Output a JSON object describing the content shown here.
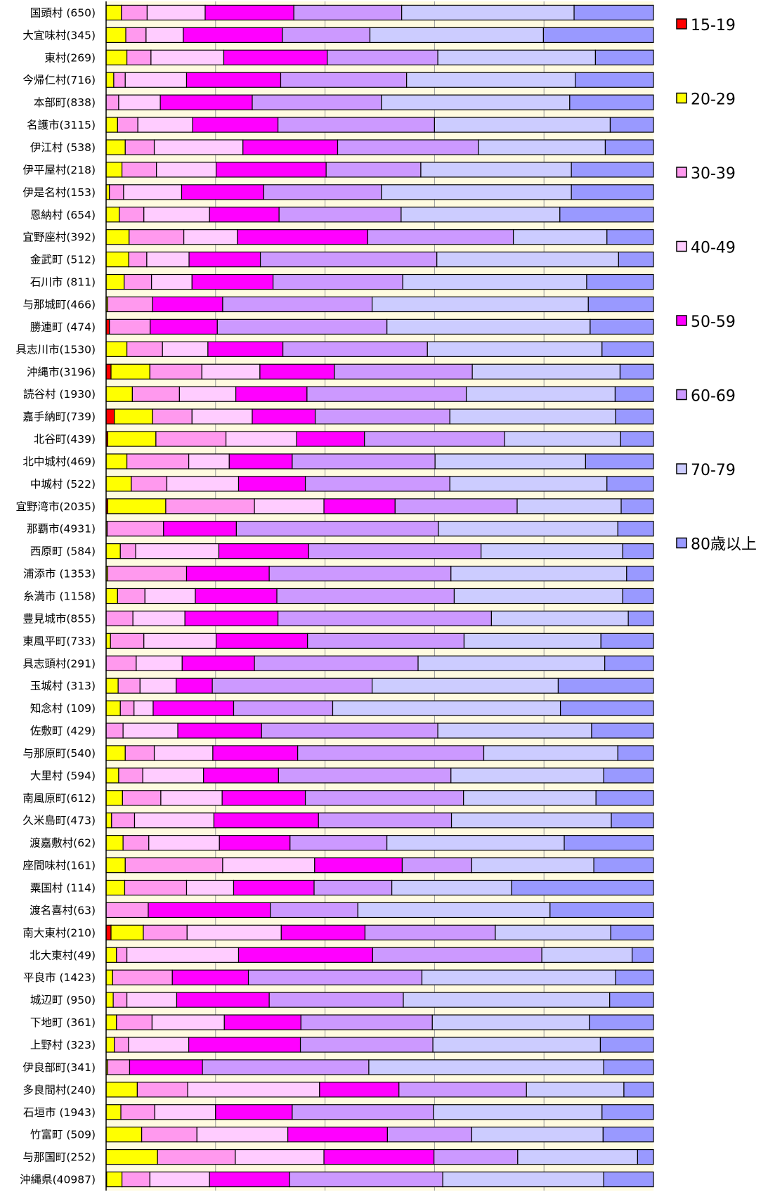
{
  "chart_data": {
    "type": "bar",
    "orientation": "horizontal",
    "stacked": true,
    "normalized": true,
    "grid": true,
    "legend_position": "right",
    "categories": [
      "国頭村 (650)",
      "大宜味村(345)",
      "東村(269)",
      "今帰仁村(716)",
      "本部町(838)",
      "名護市(3115)",
      "伊江村 (538)",
      "伊平屋村(218)",
      "伊是名村(153)",
      "恩納村 (654)",
      "宜野座村(392)",
      "金武町 (512)",
      "石川市 (811)",
      "与那城町(466)",
      "勝連町 (474)",
      "具志川市(1530)",
      "沖縄市(3196)",
      "読谷村 (1930)",
      "嘉手納町(739)",
      "北谷町(439)",
      "北中城村(469)",
      "中城村 (522)",
      "宜野湾市(2035)",
      "那覇市(4931)",
      "西原町 (584)",
      "浦添市 (1353)",
      "糸満市 (1158)",
      "豊見城市(855)",
      "東風平町(733)",
      "具志頭村(291)",
      "玉城村 (313)",
      "知念村 (109)",
      "佐敷町 (429)",
      "与那原町(540)",
      "大里村 (594)",
      "南風原町(612)",
      "久米島町(473)",
      "渡嘉敷村(62)",
      "座間味村(161)",
      "粟国村 (114)",
      "渡名喜村(63)",
      "南大東村(210)",
      "北大東村(49)",
      "平良市 (1423)",
      "城辺町 (950)",
      "下地町 (361)",
      "上野村 (323)",
      "伊良部町(341)",
      "多良間村(240)",
      "石垣市 (1943)",
      "竹富町 (509)",
      "与那国町(252)",
      "沖縄県(40987)"
    ],
    "series": [
      {
        "name": "15-19",
        "color": "#ff0000",
        "values": [
          0,
          0,
          0,
          0,
          0,
          0,
          0,
          0,
          0,
          0,
          0,
          0,
          0,
          0,
          0.6,
          0,
          0.9,
          0,
          1.5,
          0.3,
          0,
          0,
          0.3,
          0,
          0,
          0,
          0,
          0,
          0,
          0,
          0,
          0,
          0,
          0,
          0,
          0,
          0,
          0,
          0,
          0,
          0,
          0.9,
          0,
          0,
          0,
          0,
          0,
          0,
          0,
          0,
          0,
          0,
          0.1
        ]
      },
      {
        "name": "20-29",
        "color": "#ffff00",
        "values": [
          2.8,
          3.6,
          3.8,
          1.4,
          0,
          2.1,
          3.5,
          2.9,
          0.6,
          2.4,
          4.2,
          4.3,
          3.3,
          0.3,
          0,
          3.8,
          7.1,
          4.8,
          7.0,
          8.8,
          3.8,
          4.6,
          10.6,
          0.2,
          2.6,
          0.3,
          2.1,
          0,
          0.8,
          0,
          2.2,
          2.6,
          0,
          3.5,
          2.3,
          3.0,
          1.0,
          3.1,
          3.5,
          3.4,
          0,
          5.9,
          1.9,
          1.2,
          1.3,
          1.9,
          1.5,
          0.3,
          5.7,
          2.7,
          6.5,
          9.4,
          2.8
        ]
      },
      {
        "name": "30-39",
        "color": "#ff99ee",
        "values": [
          4.7,
          3.7,
          4.4,
          2.1,
          2.3,
          3.7,
          5.3,
          6.3,
          2.6,
          4.5,
          10.0,
          3.4,
          5.0,
          8.2,
          7.4,
          6.5,
          9.5,
          8.6,
          7.2,
          12.8,
          11.3,
          6.5,
          16.2,
          10.3,
          2.8,
          14.4,
          5.0,
          4.9,
          6.1,
          5.5,
          4.0,
          2.5,
          3.1,
          5.3,
          4.4,
          7.0,
          4.2,
          4.7,
          17.8,
          11.3,
          7.7,
          8.0,
          1.9,
          10.9,
          2.5,
          6.5,
          2.6,
          4.0,
          9.2,
          6.2,
          10.1,
          14.2,
          5.1
        ]
      },
      {
        "name": "40-49",
        "color": "#ffccff",
        "values": [
          10.6,
          6.8,
          13.3,
          11.2,
          7.6,
          10.0,
          16.2,
          10.9,
          10.6,
          12.0,
          9.8,
          8.0,
          7.4,
          0,
          0,
          8.3,
          10.6,
          10.3,
          11.0,
          12.9,
          7.4,
          13.1,
          12.7,
          0,
          15.2,
          0,
          9.2,
          9.5,
          13.2,
          8.4,
          6.6,
          3.5,
          10.0,
          10.7,
          11.1,
          11.2,
          14.5,
          12.9,
          16.8,
          8.6,
          0,
          17.2,
          20.4,
          0,
          9.1,
          13.2,
          11.0,
          0,
          24.1,
          11.1,
          16.6,
          16.2,
          10.9
        ]
      },
      {
        "name": "50-59",
        "color": "#ff00ff",
        "values": [
          16.2,
          18.1,
          18.9,
          17.2,
          16.8,
          15.6,
          17.3,
          20.1,
          15.0,
          12.7,
          23.8,
          13.5,
          14.8,
          12.8,
          12.2,
          13.7,
          13.6,
          13.0,
          11.5,
          12.4,
          11.5,
          12.2,
          13.0,
          13.3,
          16.4,
          15.1,
          14.9,
          17.0,
          16.7,
          13.2,
          6.6,
          14.7,
          15.3,
          15.5,
          13.7,
          15.2,
          19.1,
          12.9,
          16.0,
          14.7,
          22.3,
          15.3,
          24.5,
          13.9,
          16.9,
          14.0,
          20.4,
          13.3,
          14.5,
          14.0,
          18.2,
          20.1,
          14.6
        ]
      },
      {
        "name": "60-69",
        "color": "#cc99ff",
        "values": [
          19.7,
          16.0,
          20.2,
          23.0,
          23.6,
          28.6,
          25.7,
          17.3,
          21.5,
          22.3,
          26.6,
          33.4,
          23.7,
          27.3,
          30.8,
          26.4,
          25.2,
          29.1,
          24.6,
          25.6,
          26.1,
          26.4,
          22.3,
          36.9,
          31.5,
          33.2,
          32.4,
          39.0,
          28.6,
          29.9,
          29.2,
          18.1,
          32.2,
          34.0,
          31.5,
          28.9,
          24.3,
          17.7,
          12.7,
          14.2,
          16.0,
          23.8,
          30.9,
          31.7,
          24.5,
          24.0,
          24.2,
          30.4,
          23.3,
          25.8,
          15.4,
          15.3,
          28.0
        ]
      },
      {
        "name": "70-79",
        "color": "#ccccff",
        "values": [
          31.5,
          31.7,
          28.8,
          30.8,
          34.4,
          32.1,
          23.2,
          27.5,
          34.7,
          29.0,
          17.1,
          34.4,
          33.6,
          39.5,
          36.9,
          31.9,
          27.0,
          27.2,
          30.3,
          21.2,
          27.5,
          28.7,
          19.0,
          32.8,
          25.9,
          32.1,
          30.8,
          25.0,
          25.0,
          34.1,
          34.0,
          41.6,
          28.1,
          24.5,
          27.9,
          24.2,
          29.2,
          32.4,
          22.3,
          21.9,
          35.1,
          21.1,
          16.5,
          35.4,
          37.7,
          28.7,
          30.6,
          42.9,
          17.8,
          30.8,
          24.0,
          21.9,
          29.4
        ]
      },
      {
        "name": "80歳以上",
        "color": "#9999ff",
        "values": [
          14.5,
          20.1,
          10.6,
          14.3,
          15.3,
          7.9,
          8.8,
          15.0,
          15.0,
          17.1,
          8.5,
          6.6,
          12.2,
          11.9,
          11.5,
          9.4,
          6.1,
          7.0,
          6.9,
          6.0,
          12.4,
          8.5,
          5.9,
          6.5,
          5.6,
          4.9,
          5.6,
          4.6,
          9.6,
          8.9,
          17.4,
          17.0,
          11.3,
          6.5,
          9.1,
          10.5,
          7.7,
          16.3,
          10.9,
          25.9,
          18.9,
          7.8,
          3.9,
          6.9,
          8.0,
          11.7,
          9.7,
          9.1,
          5.4,
          9.4,
          9.2,
          2.9,
          9.1
        ]
      }
    ],
    "xlim": [
      0,
      100
    ],
    "title": "",
    "xlabel": "",
    "ylabel": ""
  }
}
